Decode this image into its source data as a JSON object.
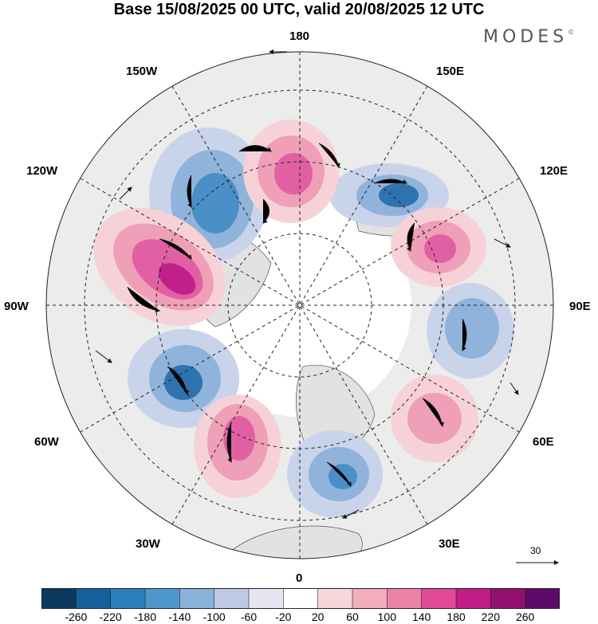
{
  "title": "Base 15/08/2025 00 UTC, valid 20/08/2025 12 UTC",
  "brand": "MODES",
  "brand_mark": "©",
  "meridian_labels": {
    "m180": "180",
    "m150w": "150W",
    "m150e": "150E",
    "m120w": "120W",
    "m120e": "120E",
    "m90w": "90W",
    "m90e": "90E",
    "m60w": "60W",
    "m60e": "60E",
    "m30w": "30W",
    "m30e": "30E",
    "m0": "0"
  },
  "vector_scale_label": "30",
  "colorbar": {
    "colors": [
      "#0b3a5e",
      "#13609a",
      "#2a7fbc",
      "#4d97cc",
      "#8ab3dc",
      "#bfc9e6",
      "#e6e6f2",
      "#ffffff",
      "#f7d6da",
      "#f2aebd",
      "#ec82a8",
      "#e24a99",
      "#c21c87",
      "#941070",
      "#5e0a6b"
    ],
    "ticks": [
      "-260",
      "-220",
      "-180",
      "-140",
      "-100",
      "-60",
      "-20",
      "20",
      "60",
      "100",
      "140",
      "180",
      "220",
      "260"
    ]
  },
  "anomaly_colors": {
    "blue_light": "#c9d3ea",
    "blue_mid": "#8fb3da",
    "blue_dark": "#4a8fc7",
    "blue_core": "#2f72b0",
    "pink_light": "#f6d2d8",
    "pink_mid": "#ef9fb8",
    "pink_dark": "#e160a4",
    "magenta": "#c1208a",
    "purple": "#8d136e"
  }
}
